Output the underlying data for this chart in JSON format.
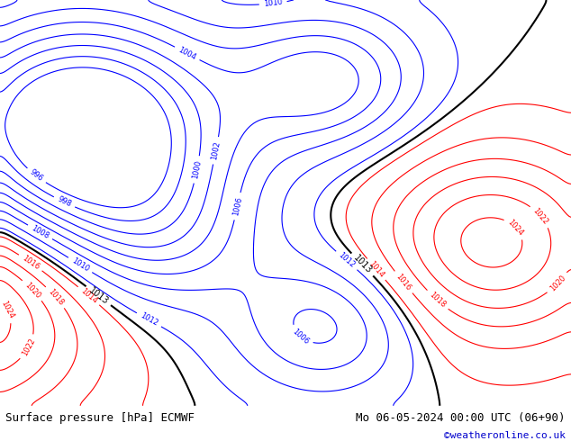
{
  "title_left": "Surface pressure [hPa] ECMWF",
  "title_right": "Mo 06-05-2024 00:00 UTC (06+90)",
  "copyright": "©weatheronline.co.uk",
  "bg_color": "#d3d3d3",
  "land_color": "#c8e6a0",
  "ocean_color": "#d3d3d3",
  "isobar_black_values": [
    1013
  ],
  "isobar_blue_values": [
    996,
    998,
    1000,
    1002,
    1004,
    1006,
    1008,
    1010,
    1012
  ],
  "isobar_red_values": [
    1014,
    1016,
    1018,
    1020,
    1022,
    1024
  ],
  "bottom_bar_color": "#e8e8e8",
  "bottom_text_color": "#000000",
  "copyright_color": "#0000cc",
  "font_size_bottom": 9,
  "map_extent": [
    -25,
    45,
    25,
    75
  ]
}
